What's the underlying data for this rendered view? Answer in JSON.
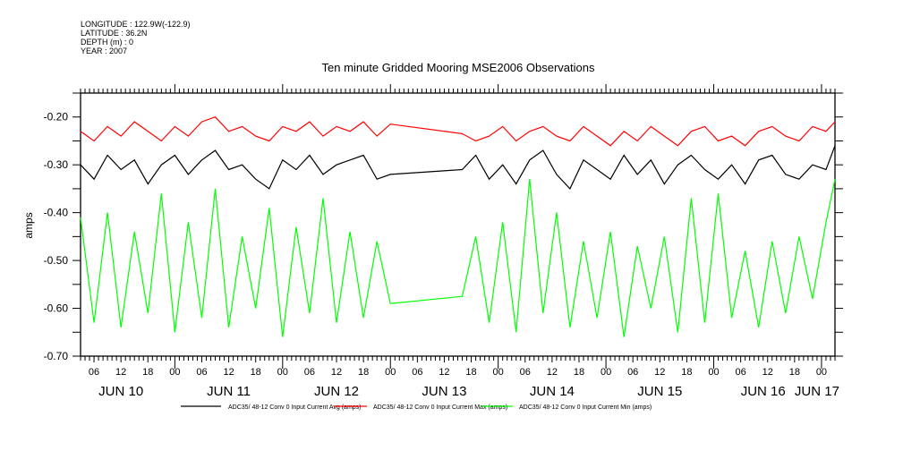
{
  "header": {
    "longitude": "LONGITUDE : 122.9W(-122.9)",
    "latitude": "LATITUDE : 36.2N",
    "depth": "DEPTH (m) : 0",
    "year": "YEAR : 2007"
  },
  "chart_data": {
    "type": "line",
    "title": "Ten minute Gridded Mooring MSE2006 Observations",
    "xlabel": "",
    "ylabel": "amps",
    "x_units": "hours since JUN 10 00:00",
    "xlim": [
      3,
      171
    ],
    "ylim": [
      -0.7,
      -0.15
    ],
    "yticks": [
      "-0.20",
      "-0.30",
      "-0.40",
      "-0.50",
      "-0.60",
      "-0.70"
    ],
    "ytick_values": [
      -0.2,
      -0.3,
      -0.4,
      -0.5,
      -0.6,
      -0.7
    ],
    "hour_labels": [
      "06",
      "12",
      "18",
      "00"
    ],
    "day_labels": [
      "JUN 10",
      "JUN 11",
      "JUN 12",
      "JUN 13",
      "JUN 14",
      "JUN 15",
      "JUN 16",
      "JUN 17"
    ],
    "grid": false,
    "legend_position": "bottom",
    "x": [
      3,
      6,
      9,
      12,
      15,
      18,
      21,
      24,
      27,
      30,
      33,
      36,
      39,
      42,
      45,
      48,
      51,
      54,
      57,
      60,
      63,
      66,
      69,
      72,
      88,
      91,
      94,
      97,
      100,
      103,
      106,
      109,
      112,
      115,
      118,
      121,
      124,
      127,
      130,
      133,
      136,
      139,
      142,
      145,
      148,
      151,
      154,
      157,
      160,
      163,
      166,
      169,
      171
    ],
    "series": [
      {
        "name": "ADC35/ 48-12 Conv 0 Input Current Avg (amps)",
        "color": "#000000",
        "values": [
          -0.3,
          -0.33,
          -0.28,
          -0.31,
          -0.29,
          -0.34,
          -0.3,
          -0.28,
          -0.32,
          -0.29,
          -0.27,
          -0.31,
          -0.3,
          -0.33,
          -0.35,
          -0.29,
          -0.31,
          -0.28,
          -0.32,
          -0.3,
          -0.29,
          -0.28,
          -0.33,
          -0.32,
          -0.31,
          -0.28,
          -0.33,
          -0.3,
          -0.34,
          -0.29,
          -0.27,
          -0.32,
          -0.35,
          -0.29,
          -0.31,
          -0.33,
          -0.28,
          -0.32,
          -0.29,
          -0.34,
          -0.3,
          -0.28,
          -0.31,
          -0.33,
          -0.3,
          -0.34,
          -0.29,
          -0.28,
          -0.32,
          -0.33,
          -0.3,
          -0.31,
          -0.26
        ]
      },
      {
        "name": "ADC35/ 48-12 Conv 0 Input Current Max (amps)",
        "color": "#ff0000",
        "values": [
          -0.23,
          -0.25,
          -0.22,
          -0.24,
          -0.21,
          -0.23,
          -0.25,
          -0.22,
          -0.24,
          -0.21,
          -0.2,
          -0.23,
          -0.22,
          -0.24,
          -0.25,
          -0.22,
          -0.23,
          -0.21,
          -0.24,
          -0.22,
          -0.23,
          -0.21,
          -0.24,
          -0.215,
          -0.235,
          -0.25,
          -0.24,
          -0.22,
          -0.25,
          -0.23,
          -0.22,
          -0.24,
          -0.25,
          -0.22,
          -0.24,
          -0.26,
          -0.23,
          -0.25,
          -0.22,
          -0.24,
          -0.26,
          -0.23,
          -0.22,
          -0.25,
          -0.24,
          -0.26,
          -0.23,
          -0.22,
          -0.24,
          -0.25,
          -0.22,
          -0.23,
          -0.21
        ]
      },
      {
        "name": "ADC35/ 48-12 Conv 0 Input Current Min (amps)",
        "color": "#00ff00",
        "values": [
          -0.41,
          -0.63,
          -0.4,
          -0.64,
          -0.44,
          -0.61,
          -0.36,
          -0.65,
          -0.42,
          -0.62,
          -0.35,
          -0.64,
          -0.45,
          -0.6,
          -0.39,
          -0.66,
          -0.43,
          -0.61,
          -0.37,
          -0.63,
          -0.44,
          -0.62,
          -0.46,
          -0.59,
          -0.575,
          -0.45,
          -0.63,
          -0.42,
          -0.65,
          -0.33,
          -0.61,
          -0.4,
          -0.64,
          -0.46,
          -0.62,
          -0.44,
          -0.66,
          -0.47,
          -0.6,
          -0.45,
          -0.65,
          -0.37,
          -0.63,
          -0.36,
          -0.62,
          -0.48,
          -0.64,
          -0.46,
          -0.61,
          -0.45,
          -0.58,
          -0.42,
          -0.33
        ]
      }
    ]
  }
}
